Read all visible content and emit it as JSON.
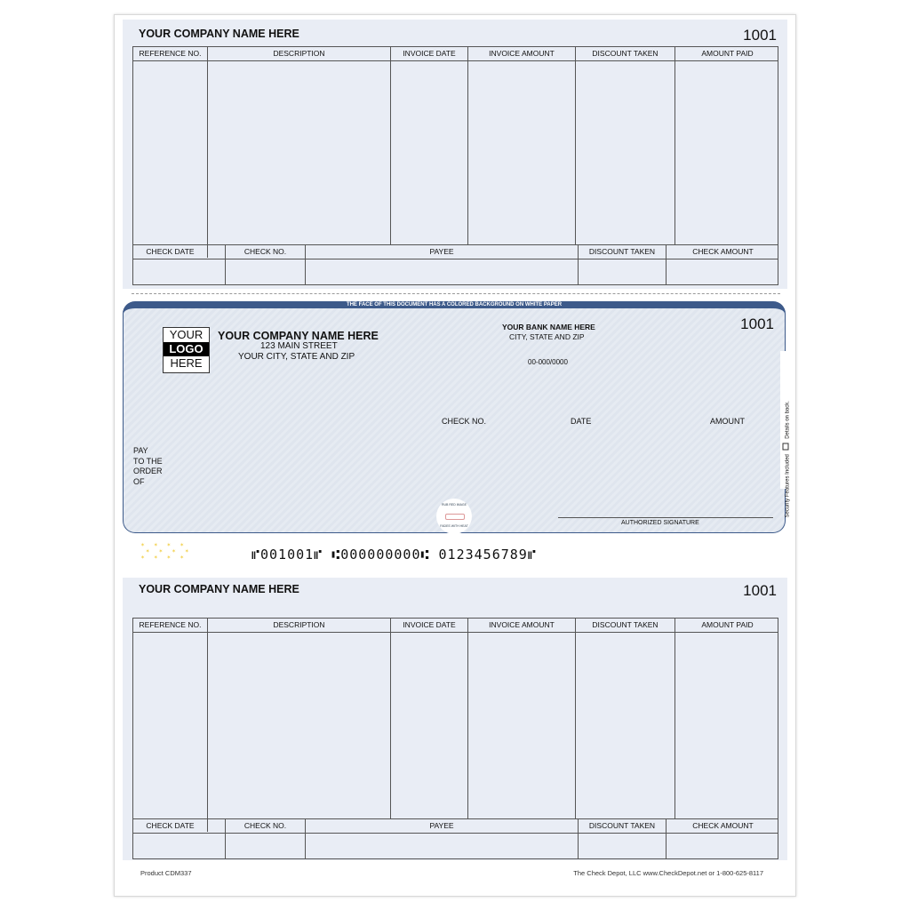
{
  "stub": {
    "company": "YOUR COMPANY NAME HERE",
    "check_number": "1001",
    "invoice_headers": [
      "REFERENCE NO.",
      "DESCRIPTION",
      "INVOICE DATE",
      "INVOICE AMOUNT",
      "DISCOUNT TAKEN",
      "AMOUNT PAID"
    ],
    "summary_headers": [
      "CHECK DATE",
      "",
      "CHECK NO.",
      "PAYEE",
      "DISCOUNT TAKEN",
      "CHECK AMOUNT"
    ]
  },
  "check": {
    "banner": "THE FACE OF THIS DOCUMENT HAS A COLORED BACKGROUND ON WHITE PAPER",
    "logo": [
      "YOUR",
      "LOGO",
      "HERE"
    ],
    "company": "YOUR COMPANY NAME HERE",
    "street": "123 MAIN STREET",
    "city": "YOUR CITY, STATE AND ZIP",
    "bank_name": "YOUR BANK NAME HERE",
    "bank_city": "CITY, STATE AND ZIP",
    "fraction": "00-000/0000",
    "check_number": "1001",
    "check_no_label": "CHECK NO.",
    "date_label": "DATE",
    "amount_label": "AMOUNT",
    "pay_to": [
      "PAY",
      "TO THE",
      "ORDER",
      "OF"
    ],
    "signature_label": "AUTHORIZED SIGNATURE",
    "seal_text": [
      "RUB RED IMAGE",
      "FADES WITH HEAT"
    ],
    "security_side": "Security Features Included",
    "details_side": "Details on back.",
    "border_color": "#3d5a8a"
  },
  "micr": "⑈001001⑈ ⑆000000000⑆ 0123456789⑈",
  "footer": {
    "product": "Product CDM337",
    "vendor": "The Check Depot, LLC  www.CheckDepot.net  or  1-800-625-8117"
  }
}
